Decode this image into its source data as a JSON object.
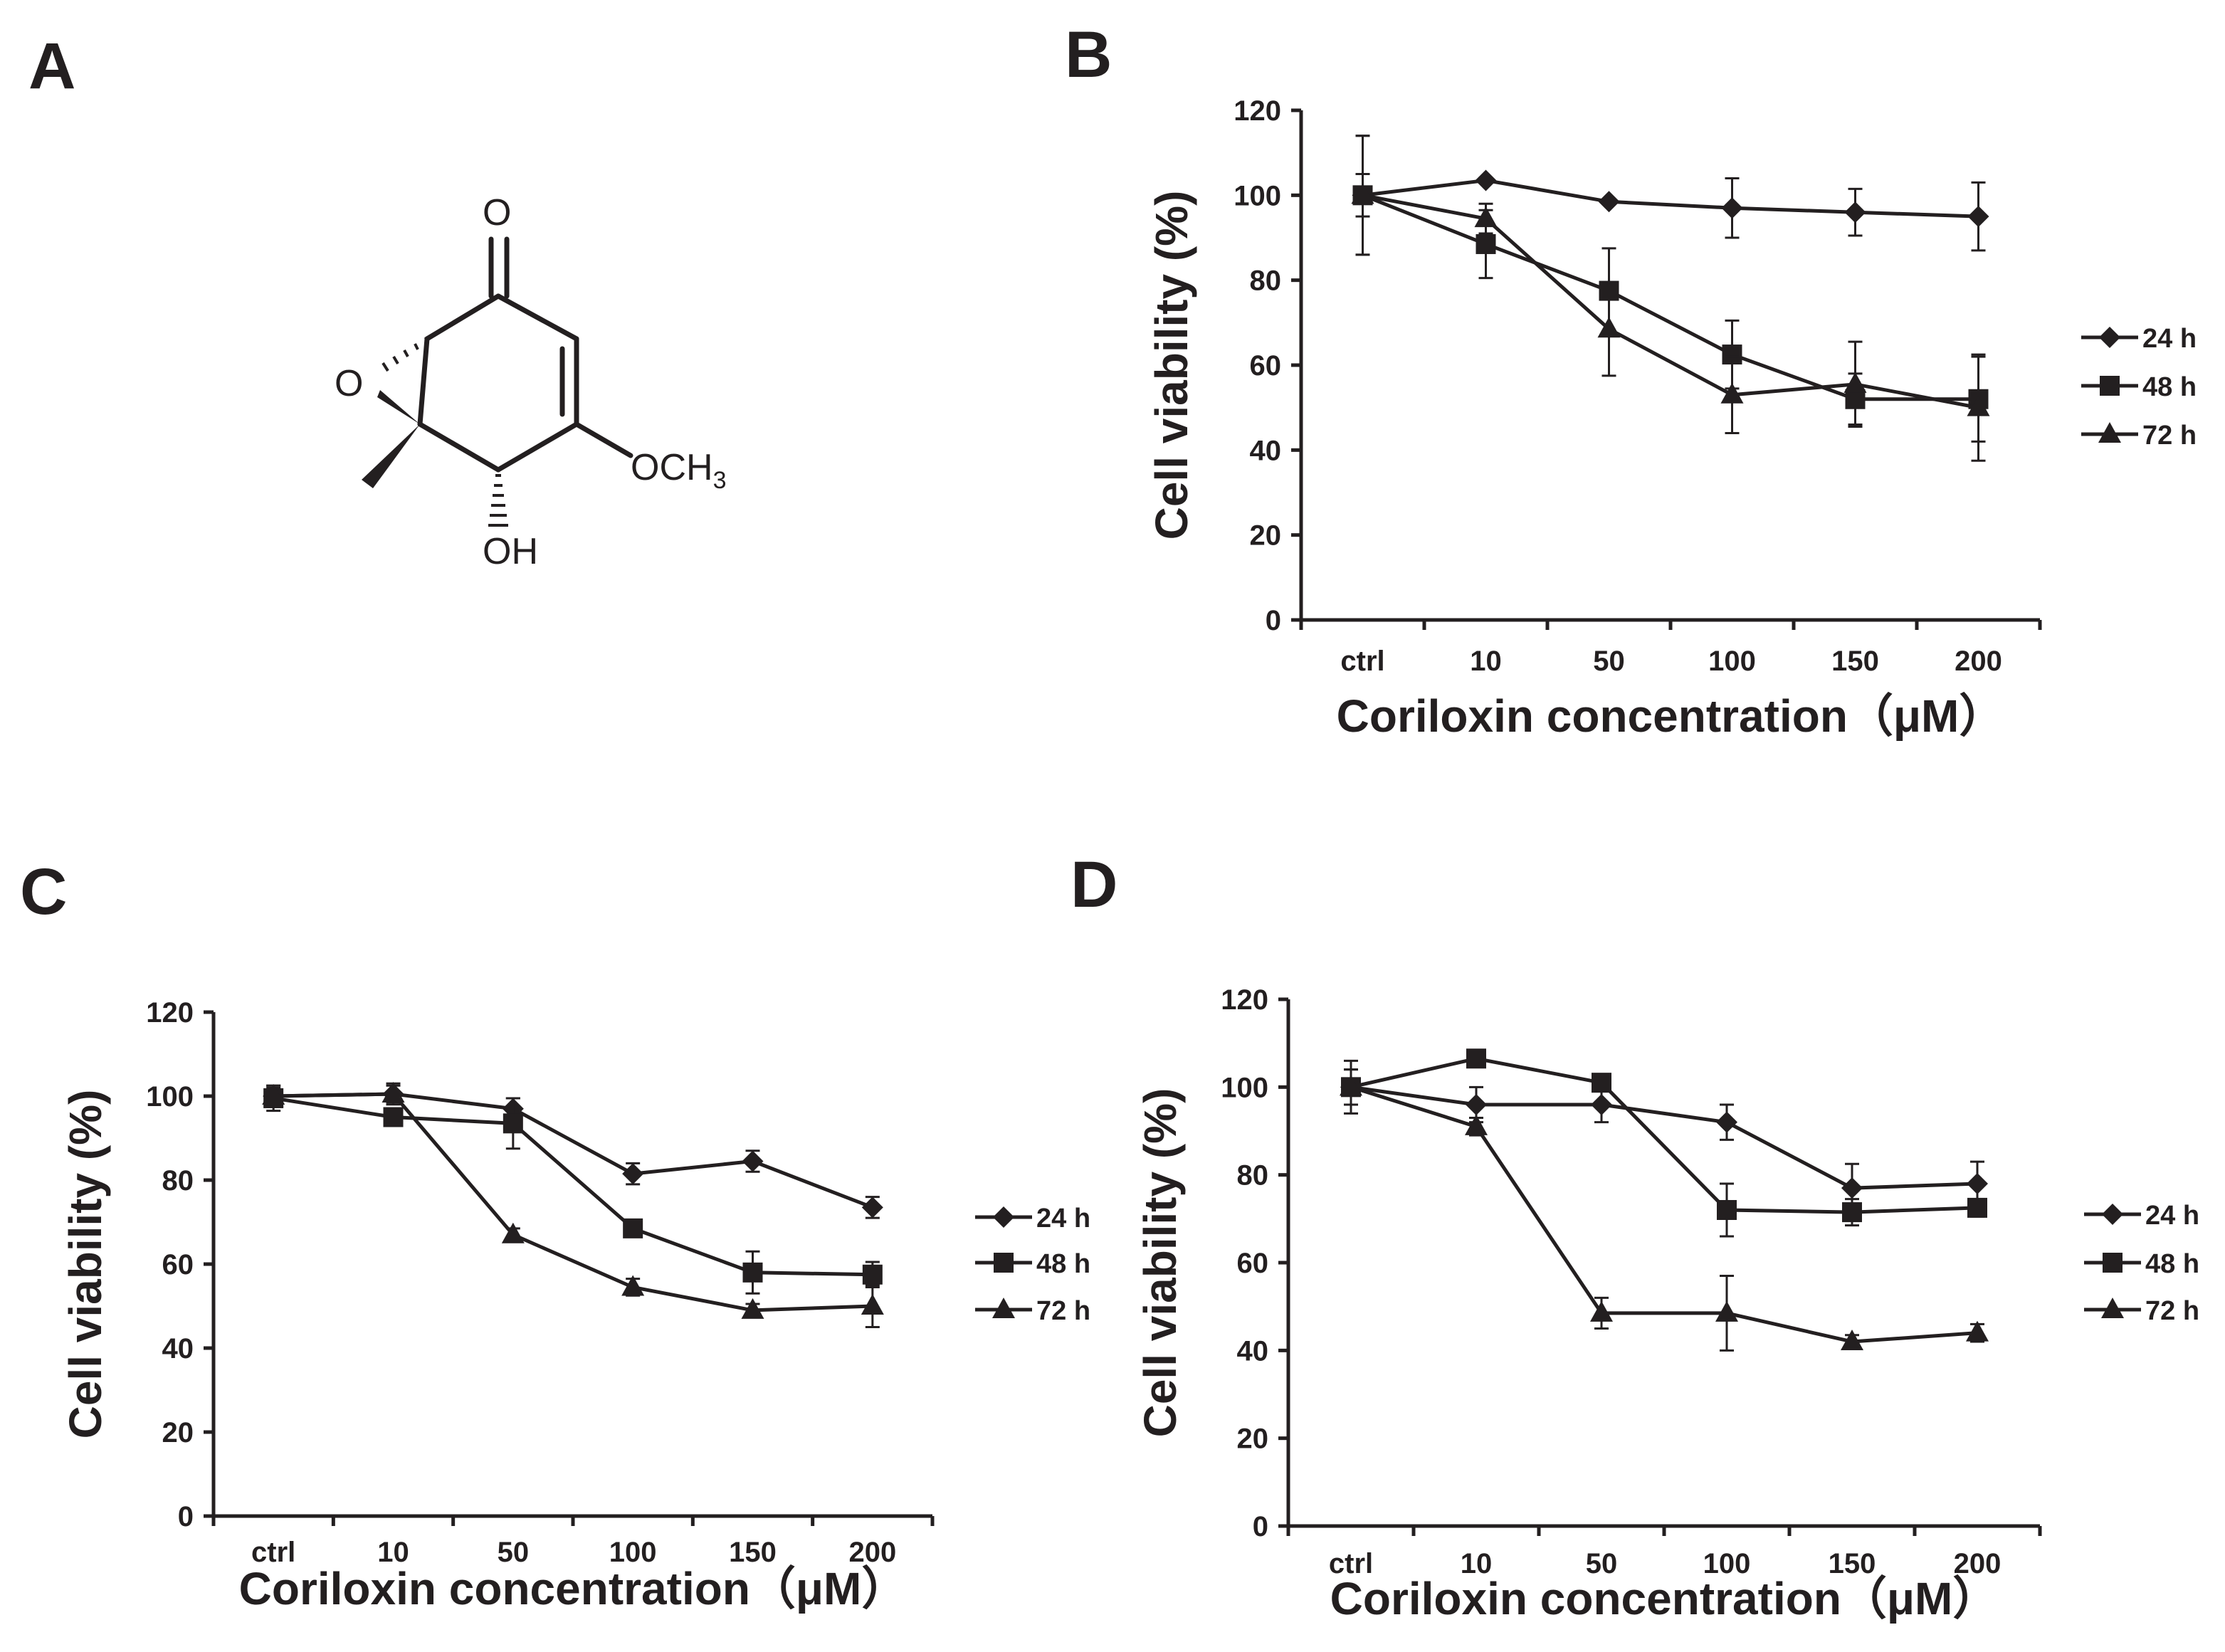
{
  "panels": {
    "A": {
      "label": "A",
      "atoms": {
        "carbonyl_o": "O",
        "epoxide_o": "O",
        "methoxy": "OCH",
        "methoxy_sub": "3",
        "hydroxyl": "OH"
      }
    },
    "B": {
      "label": "B"
    },
    "C": {
      "label": "C"
    },
    "D": {
      "label": "D"
    }
  },
  "chart_data": [
    {
      "panel": "B",
      "type": "line",
      "categories": [
        "ctrl",
        "10",
        "50",
        "100",
        "150",
        "200"
      ],
      "xlabel": "Coriloxin concentration（μM）",
      "ylabel": "Cell viability (%)",
      "ylim": [
        0,
        120
      ],
      "yticks": [
        "0",
        "20",
        "40",
        "60",
        "80",
        "100",
        "120"
      ],
      "legend": "right",
      "grid": false,
      "series": [
        {
          "name": "24 h",
          "marker": "diamond",
          "values": [
            100,
            103.5,
            98.5,
            97,
            96,
            95
          ],
          "errors": [
            5,
            0,
            0,
            7,
            5.5,
            8
          ]
        },
        {
          "name": "48 h",
          "marker": "square",
          "values": [
            100,
            88.5,
            77.5,
            62.5,
            52,
            52
          ],
          "errors": [
            14,
            8,
            10,
            8,
            6,
            10
          ]
        },
        {
          "name": "72 h",
          "marker": "triangle",
          "values": [
            100,
            94.5,
            68.5,
            53,
            55.5,
            50
          ],
          "errors": [
            14,
            3.5,
            11,
            9,
            10,
            12.5
          ]
        }
      ]
    },
    {
      "panel": "C",
      "type": "line",
      "categories": [
        "ctrl",
        "10",
        "50",
        "100",
        "150",
        "200"
      ],
      "xlabel": "Coriloxin concentration（μM）",
      "ylabel": "Cell viability (%)",
      "ylim": [
        0,
        120
      ],
      "yticks": [
        "0",
        "20",
        "40",
        "60",
        "80",
        "100",
        "120"
      ],
      "legend": "right",
      "grid": false,
      "series": [
        {
          "name": "24 h",
          "marker": "diamond",
          "values": [
            100,
            100.5,
            97,
            81.5,
            84.5,
            73.5
          ],
          "errors": [
            2.5,
            2.5,
            2.5,
            2.5,
            2.5,
            2.5
          ]
        },
        {
          "name": "48 h",
          "marker": "square",
          "values": [
            99.5,
            95,
            93.5,
            68.5,
            58,
            57.5
          ],
          "errors": [
            3,
            2,
            6,
            1.5,
            5,
            3
          ]
        },
        {
          "name": "72 h",
          "marker": "triangle",
          "values": [
            100,
            100.5,
            67,
            54.5,
            49,
            50
          ],
          "errors": [
            2,
            2,
            1.5,
            2,
            1.5,
            5
          ]
        }
      ]
    },
    {
      "panel": "D",
      "type": "line",
      "categories": [
        "ctrl",
        "10",
        "50",
        "100",
        "150",
        "200"
      ],
      "xlabel": "Coriloxin concentration（μM）",
      "ylabel": "Cell viability (%)",
      "ylim": [
        0,
        120
      ],
      "yticks": [
        "0",
        "20",
        "40",
        "60",
        "80",
        "100",
        "120"
      ],
      "legend": "right",
      "grid": false,
      "series": [
        {
          "name": "24 h",
          "marker": "diamond",
          "values": [
            100,
            96,
            96,
            92,
            77,
            78
          ],
          "errors": [
            4,
            4,
            4,
            4,
            5.5,
            5
          ]
        },
        {
          "name": "48 h",
          "marker": "square",
          "values": [
            100,
            106.5,
            101,
            72,
            71.5,
            72.5
          ],
          "errors": [
            6,
            0,
            0,
            6,
            3,
            2
          ]
        },
        {
          "name": "72 h",
          "marker": "triangle",
          "values": [
            100,
            91,
            48.5,
            48.5,
            42,
            44
          ],
          "errors": [
            4,
            2,
            3.5,
            8.5,
            1.5,
            2
          ]
        }
      ]
    }
  ]
}
